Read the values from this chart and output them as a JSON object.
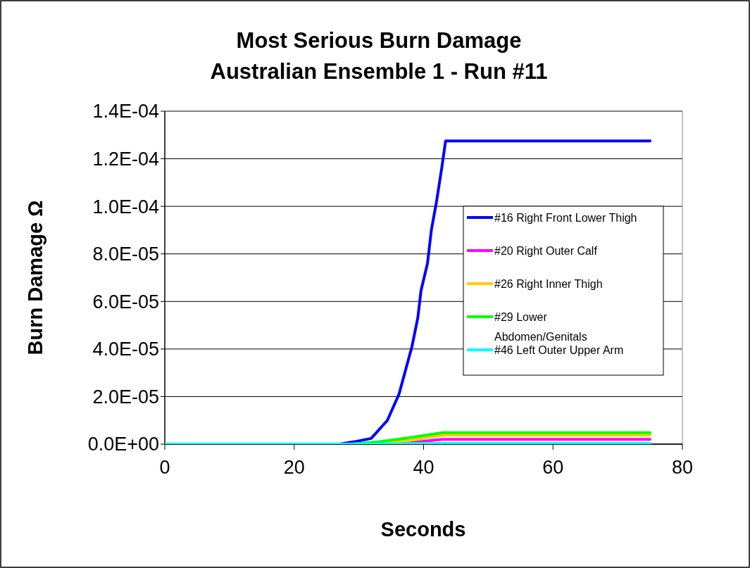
{
  "chart_data": {
    "type": "line",
    "title": "Most Serious Burn Damage\nAustralian Ensemble 1 - Run #11",
    "xlabel": "Seconds",
    "ylabel": "Burn Damage Ω",
    "xlim": [
      0,
      80
    ],
    "xticks": [
      0,
      20,
      40,
      60,
      80
    ],
    "ylim": [
      0,
      0.00014
    ],
    "yticks": [
      {
        "value": 0,
        "label": "0.0E+00"
      },
      {
        "value": 2e-05,
        "label": "2.0E-05"
      },
      {
        "value": 4e-05,
        "label": "4.0E-05"
      },
      {
        "value": 6e-05,
        "label": "6.0E-05"
      },
      {
        "value": 8e-05,
        "label": "8.0E-05"
      },
      {
        "value": 0.0001,
        "label": "1.0E-04"
      },
      {
        "value": 0.00012,
        "label": "1.2E-04"
      },
      {
        "value": 0.00014,
        "label": "1.4E-04"
      }
    ],
    "grid": "y",
    "legend": "right",
    "marker": "none",
    "line_style": "solid",
    "series": [
      {
        "name": "#16 Right Front Lower Thigh",
        "color": "#0000ff",
        "x": [
          0,
          27,
          29.7,
          31.9,
          34.4,
          36.2,
          37.3,
          38.2,
          39.1,
          39.6,
          40.6,
          41.2,
          42,
          42.8,
          43.4,
          75
        ],
        "values": [
          0,
          0,
          1.2e-06,
          2.4e-06,
          1e-05,
          2.1e-05,
          3.2e-05,
          4.1e-05,
          5.3e-05,
          6.45e-05,
          7.6e-05,
          9e-05,
          0.000102,
          0.000116,
          0.0001275,
          0.0001275
        ]
      },
      {
        "name": "#20 Right Outer Calf",
        "color": "#ff00ff",
        "x": [
          0,
          30,
          38,
          40,
          42,
          43,
          75
        ],
        "values": [
          0,
          0,
          5e-07,
          1.2e-06,
          1.8e-06,
          2e-06,
          2e-06
        ]
      },
      {
        "name": "#26 Right Inner Thigh",
        "color": "#ffcc00",
        "x": [
          0,
          29,
          36,
          39,
          41,
          43,
          75
        ],
        "values": [
          0,
          0,
          1e-06,
          2e-06,
          3e-06,
          3.8e-06,
          3.8e-06
        ]
      },
      {
        "name": "#29 Lower Abdomen/Genitals",
        "color": "#00ff00",
        "x": [
          0,
          29,
          33,
          36,
          39,
          41,
          43,
          75
        ],
        "values": [
          0,
          0,
          1e-06,
          2e-06,
          3.2e-06,
          4e-06,
          4.8e-06,
          4.8e-06
        ]
      },
      {
        "name": "#46 Left Outer Upper Arm",
        "color": "#00ffff",
        "x": [
          0,
          30,
          40,
          43,
          75
        ],
        "values": [
          0,
          0,
          2e-07,
          3e-07,
          3e-07
        ]
      }
    ]
  }
}
